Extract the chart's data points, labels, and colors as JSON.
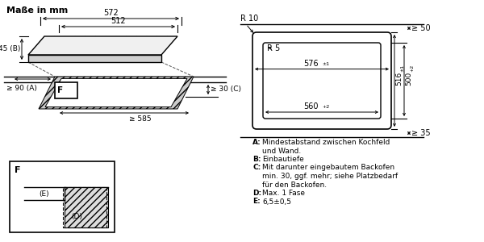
{
  "title": "Maße in mm",
  "bg_color": "#ffffff",
  "legend_items": [
    [
      "A",
      "Mindestabstand zwischen Kochfeld",
      "und Wand."
    ],
    [
      "B",
      "Einbautiefe"
    ],
    [
      "C",
      "Mit darunter eingebautem Backofen",
      "min. 30, ggf. mehr; siehe Platzbedarf",
      "für den Backofen."
    ],
    [
      "D",
      "Max. 1 Fase"
    ],
    [
      "E",
      "6,5±0,5"
    ]
  ]
}
